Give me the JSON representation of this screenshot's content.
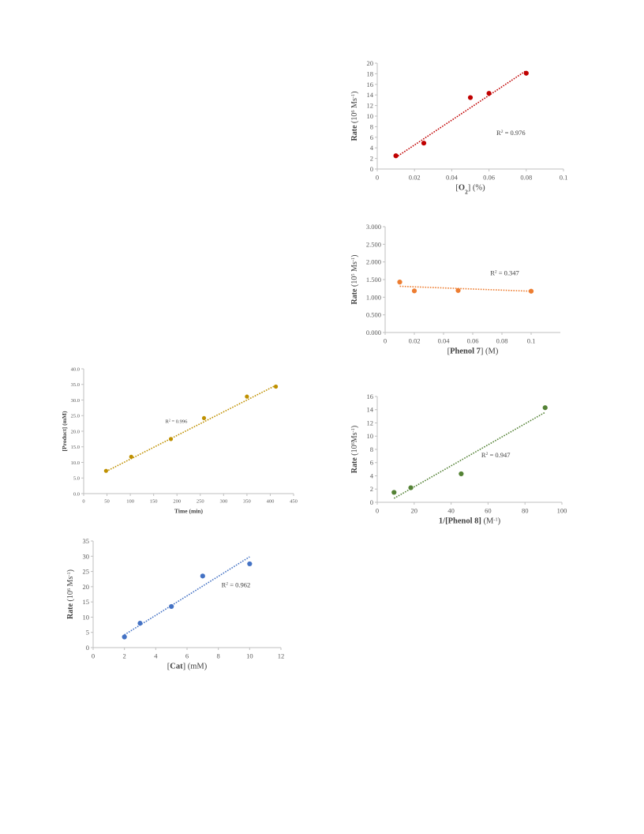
{
  "chart_data": [
    {
      "type": "scatter",
      "series": [
        {
          "values": [
            [
              0.01,
              2.5
            ],
            [
              0.025,
              4.9
            ],
            [
              0.05,
              13.5
            ],
            [
              0.06,
              14.3
            ],
            [
              0.08,
              18.1
            ]
          ]
        }
      ],
      "trendline": {
        "x": [
          0.01,
          0.08
        ],
        "y": [
          2.2,
          18.6
        ]
      },
      "xlim": [
        0,
        0.1
      ],
      "ylim": [
        0,
        20
      ],
      "xticks": [
        "0",
        "0.02",
        "0.04",
        "0.06",
        "0.08",
        "0.1"
      ],
      "yticks": [
        "0",
        "2",
        "4",
        "6",
        "8",
        "10",
        "12",
        "14",
        "16",
        "18",
        "20"
      ],
      "ylabel": {
        "main": "Rate",
        "open": " (10",
        "sup": "6",
        "unit": " Ms",
        "unitsup": "-1",
        "close": ")"
      },
      "xlabel": {
        "pre": "[",
        "main": "O",
        "sub": "2",
        "post": "] (%)"
      },
      "annotation": {
        "pre": "R",
        "sup": "2",
        "post": " = 0.976"
      },
      "color": "#c00000"
    },
    {
      "type": "scatter",
      "series": [
        {
          "values": [
            [
              0.01,
              1.43
            ],
            [
              0.02,
              1.18
            ],
            [
              0.05,
              1.19
            ],
            [
              0.1,
              1.17
            ]
          ]
        }
      ],
      "trendline": {
        "x": [
          0.01,
          0.1
        ],
        "y": [
          1.31,
          1.17
        ]
      },
      "xlim": [
        0,
        0.12
      ],
      "ylim": [
        0,
        3
      ],
      "xticks": [
        "0",
        "0.02",
        "0.04",
        "0.06",
        "0.08",
        "0.1"
      ],
      "yticks": [
        "0.000",
        "0.500",
        "1.000",
        "1.500",
        "2.000",
        "2.500",
        "3.000"
      ],
      "ylabel": {
        "main": "Rate",
        "open": " (10",
        "sup": "5",
        "unit": " Ms",
        "unitsup": "-1",
        "close": ")"
      },
      "xlabel": {
        "pre": "[",
        "main": "Phenol 7",
        "sub": "",
        "post": "] (M)"
      },
      "annotation": {
        "pre": "R",
        "sup": "2",
        "post": " = 0.347"
      },
      "color": "#ed7d31"
    },
    {
      "type": "scatter",
      "series": [
        {
          "values": [
            [
              48,
              7.3
            ],
            [
              102,
              11.8
            ],
            [
              187,
              17.5
            ],
            [
              258,
              24.2
            ],
            [
              350,
              31.1
            ],
            [
              412,
              34.3
            ]
          ]
        }
      ],
      "trendline": {
        "x": [
          48,
          412
        ],
        "y": [
          7.1,
          34.7
        ]
      },
      "xlim": [
        0,
        450
      ],
      "ylim": [
        0,
        40
      ],
      "xticks": [
        "0",
        "50",
        "100",
        "150",
        "200",
        "250",
        "300",
        "350",
        "400",
        "450"
      ],
      "yticks": [
        "0.0",
        "5.0",
        "10.0",
        "15.0",
        "20.0",
        "25.0",
        "30.0",
        "35.0",
        "40.0"
      ],
      "ylabel": {
        "main": "[Product] (mM)",
        "open": "",
        "sup": "",
        "unit": "",
        "unitsup": "",
        "close": ""
      },
      "xlabel": {
        "pre": "",
        "main": "Time (min)",
        "sub": "",
        "post": ""
      },
      "annotation": {
        "pre": "R",
        "sup": "2",
        "post": " = 0.996"
      },
      "color": "#bf9000"
    },
    {
      "type": "scatter",
      "series": [
        {
          "values": [
            [
              10,
              1.5
            ],
            [
              20,
              2.2
            ],
            [
              50,
              4.3
            ],
            [
              100,
              14.3
            ]
          ]
        }
      ],
      "trendline": {
        "x": [
          10,
          100
        ],
        "y": [
          0.6,
          13.6
        ]
      },
      "xlim": [
        0,
        110
      ],
      "ylim": [
        0,
        16
      ],
      "xticks": [
        "0",
        "20",
        "40",
        "60",
        "80",
        "100"
      ],
      "yticks": [
        "0",
        "2",
        "4",
        "6",
        "8",
        "10",
        "12",
        "14",
        "16"
      ],
      "ylabel": {
        "main": "Rate",
        "open": " (10",
        "sup": "6",
        "unit": "Ms",
        "unitsup": "-1",
        "close": ")"
      },
      "xlabel": {
        "pre": "",
        "main": "1/[Phenol 8]",
        "sub": "",
        "post": " (M",
        "postsup": "-1",
        "postclose": ")"
      },
      "annotation": {
        "pre": "R",
        "sup": "2",
        "post": " = 0.947"
      },
      "color": "#548235"
    },
    {
      "type": "scatter",
      "series": [
        {
          "values": [
            [
              2,
              3.5
            ],
            [
              3,
              8
            ],
            [
              5,
              13.5
            ],
            [
              7,
              23.5
            ],
            [
              10,
              27.5
            ]
          ]
        }
      ],
      "trendline": {
        "x": [
          2,
          10
        ],
        "y": [
          4.2,
          29.8
        ]
      },
      "xlim": [
        0,
        12
      ],
      "ylim": [
        0,
        35
      ],
      "xticks": [
        "0",
        "2",
        "4",
        "6",
        "8",
        "10",
        "12"
      ],
      "yticks": [
        "0",
        "5",
        "10",
        "15",
        "20",
        "25",
        "30",
        "35"
      ],
      "ylabel": {
        "main": "Rate",
        "open": " (10",
        "sup": "6",
        "unit": " Ms",
        "unitsup": "-1",
        "close": ")"
      },
      "xlabel": {
        "pre": "[",
        "main": "Cat",
        "sub": "",
        "post": "] (mM)"
      },
      "annotation": {
        "pre": "R",
        "sup": "2",
        "post": " = 0.962"
      },
      "color": "#4472c4"
    }
  ]
}
